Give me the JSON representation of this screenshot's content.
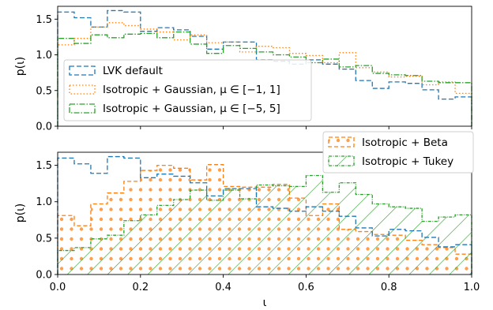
{
  "chart_data": [
    {
      "type": "line",
      "drawstyle": "steps",
      "xlabel": "",
      "ylabel": "p(ι)",
      "xlim": [
        0,
        1
      ],
      "ylim": [
        0,
        1.68
      ],
      "yticks": [
        "0.0",
        "0.5",
        "1.0",
        "1.5"
      ],
      "ytick_values": [
        0,
        0.5,
        1.0,
        1.5
      ],
      "xticks_shown": false,
      "bin_edges": [
        0,
        0.04,
        0.08,
        0.12,
        0.16,
        0.2,
        0.24,
        0.28,
        0.32,
        0.36,
        0.4,
        0.44,
        0.48,
        0.52,
        0.56,
        0.6,
        0.64,
        0.68,
        0.72,
        0.76,
        0.8,
        0.84,
        0.88,
        0.92,
        0.96,
        1.0
      ],
      "legend_position": "lower left",
      "series": [
        {
          "name": "LVK default",
          "color": "#1f77b4",
          "dash": "6,3",
          "values": [
            1.6,
            1.52,
            1.39,
            1.62,
            1.6,
            1.33,
            1.38,
            1.35,
            1.26,
            1.08,
            1.18,
            1.18,
            0.93,
            0.91,
            0.87,
            0.93,
            0.87,
            0.8,
            0.64,
            0.53,
            0.62,
            0.6,
            0.51,
            0.38,
            0.41
          ]
        },
        {
          "name": "Isotropic + Gaussian, μ ∈ [−1, 1]",
          "color": "#ff7f0e",
          "dash": "1.5,2.5",
          "values": [
            1.14,
            1.23,
            1.39,
            1.45,
            1.41,
            1.36,
            1.32,
            1.21,
            1.28,
            1.17,
            1.18,
            1.04,
            1.12,
            1.1,
            1.02,
            0.99,
            0.89,
            1.03,
            0.82,
            0.76,
            0.69,
            0.7,
            0.58,
            0.62,
            0.46
          ]
        },
        {
          "name": "Isotropic + Gaussian, μ ∈ [−5, 5]",
          "color": "#2ca02c",
          "dash": "7,2,1.5,2",
          "values": [
            1.23,
            1.16,
            1.28,
            1.24,
            1.29,
            1.3,
            1.24,
            1.32,
            1.15,
            1.02,
            1.13,
            1.09,
            1.04,
            1.0,
            0.97,
            0.89,
            0.94,
            0.83,
            0.85,
            0.74,
            0.72,
            0.71,
            0.63,
            0.61,
            0.61
          ]
        }
      ]
    },
    {
      "type": "area",
      "drawstyle": "steps",
      "xlabel": "ι",
      "ylabel": "p(ι)",
      "xlim": [
        0,
        1
      ],
      "ylim": [
        0,
        1.68
      ],
      "xticks": [
        "0.0",
        "0.2",
        "0.4",
        "0.6",
        "0.8",
        "1.0"
      ],
      "xtick_values": [
        0,
        0.2,
        0.4,
        0.6,
        0.8,
        1.0
      ],
      "yticks": [
        "0.0",
        "0.5",
        "1.0",
        "1.5"
      ],
      "ytick_values": [
        0,
        0.5,
        1.0,
        1.5
      ],
      "bin_edges": [
        0,
        0.04,
        0.08,
        0.12,
        0.16,
        0.2,
        0.24,
        0.28,
        0.32,
        0.36,
        0.4,
        0.44,
        0.48,
        0.52,
        0.56,
        0.6,
        0.64,
        0.68,
        0.72,
        0.76,
        0.8,
        0.84,
        0.88,
        0.92,
        0.96,
        1.0
      ],
      "legend_position": "upper right, above axes",
      "series": [
        {
          "name": "",
          "color": "#1f77b4",
          "dash": "6,3",
          "fill": "none",
          "values": [
            1.6,
            1.52,
            1.39,
            1.62,
            1.6,
            1.33,
            1.38,
            1.35,
            1.26,
            1.08,
            1.18,
            1.18,
            0.93,
            0.91,
            0.87,
            0.93,
            0.87,
            0.8,
            0.64,
            0.53,
            0.62,
            0.6,
            0.51,
            0.38,
            0.41
          ]
        },
        {
          "name": "Isotropic + Beta",
          "color": "#ff7f0e",
          "dash": "5,3",
          "fill": "dots",
          "values": [
            0.81,
            0.67,
            0.97,
            1.12,
            1.28,
            1.43,
            1.5,
            1.46,
            1.3,
            1.51,
            1.21,
            1.2,
            1.2,
            1.24,
            1.05,
            0.81,
            0.97,
            0.62,
            0.59,
            0.55,
            0.54,
            0.47,
            0.41,
            0.37,
            0.28
          ]
        },
        {
          "name": "Isotropic + Tukey",
          "color": "#2ca02c",
          "dash": "4,1.5,1,1.5",
          "fill": "hatch",
          "values": [
            0.33,
            0.37,
            0.49,
            0.54,
            0.74,
            0.82,
            0.95,
            1.03,
            1.16,
            1.02,
            1.16,
            1.04,
            1.23,
            1.22,
            1.21,
            1.36,
            1.13,
            1.26,
            1.1,
            0.97,
            0.93,
            0.91,
            0.73,
            0.79,
            0.82
          ]
        }
      ]
    }
  ]
}
